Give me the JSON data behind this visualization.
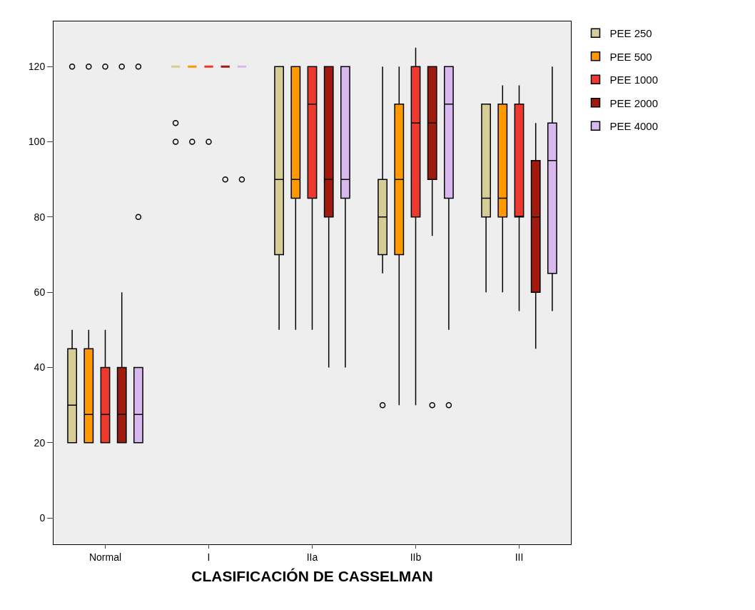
{
  "chart_data": {
    "type": "box",
    "xlabel": "CLASIFICACIÓN DE CASSELMAN",
    "categories": [
      "Normal",
      "I",
      "IIa",
      "IIb",
      "III"
    ],
    "ylim": [
      -7,
      132
    ],
    "yticks": [
      0,
      20,
      40,
      60,
      80,
      100,
      120
    ],
    "grid": false,
    "legend": "top right",
    "series": [
      {
        "name": "PEE 250",
        "color": "#d6cc96",
        "boxes": [
          {
            "low": 20,
            "q1": 20,
            "median": 30,
            "q3": 45,
            "high": 50,
            "outliers": [
              120
            ]
          },
          {
            "low": 120,
            "q1": 120,
            "median": 120,
            "q3": 120,
            "high": 120,
            "outliers": [
              105,
              100
            ]
          },
          {
            "low": 50,
            "q1": 70,
            "median": 90,
            "q3": 120,
            "high": 120
          },
          {
            "low": 65,
            "q1": 70,
            "median": 80,
            "q3": 90,
            "high": 120,
            "outliers": [
              30
            ]
          },
          {
            "low": 60,
            "q1": 80,
            "median": 85,
            "q3": 110,
            "high": 110
          }
        ]
      },
      {
        "name": "PEE 500",
        "color": "#ff9900",
        "boxes": [
          {
            "low": 20,
            "q1": 20,
            "median": 27.5,
            "q3": 45,
            "high": 50,
            "outliers": [
              120
            ]
          },
          {
            "low": 120,
            "q1": 120,
            "median": 120,
            "q3": 120,
            "high": 120,
            "outliers": [
              100
            ]
          },
          {
            "low": 50,
            "q1": 85,
            "median": 90,
            "q3": 120,
            "high": 120
          },
          {
            "low": 30,
            "q1": 70,
            "median": 90,
            "q3": 110,
            "high": 120
          },
          {
            "low": 60,
            "q1": 80,
            "median": 85,
            "q3": 110,
            "high": 115
          }
        ]
      },
      {
        "name": "PEE 1000",
        "color": "#ee3a2e",
        "boxes": [
          {
            "low": 20,
            "q1": 20,
            "median": 27.5,
            "q3": 40,
            "high": 50,
            "outliers": [
              120
            ]
          },
          {
            "low": 120,
            "q1": 120,
            "median": 120,
            "q3": 120,
            "high": 120,
            "outliers": [
              100
            ]
          },
          {
            "low": 50,
            "q1": 85,
            "median": 110,
            "q3": 120,
            "high": 120
          },
          {
            "low": 30,
            "q1": 80,
            "median": 105,
            "q3": 120,
            "high": 125
          },
          {
            "low": 55,
            "q1": 80,
            "median": 80,
            "q3": 110,
            "high": 115
          }
        ]
      },
      {
        "name": "PEE 2000",
        "color": "#a01b0d",
        "boxes": [
          {
            "low": 20,
            "q1": 20,
            "median": 27.5,
            "q3": 40,
            "high": 60,
            "outliers": [
              120
            ]
          },
          {
            "low": 120,
            "q1": 120,
            "median": 120,
            "q3": 120,
            "high": 120,
            "outliers": [
              90
            ]
          },
          {
            "low": 40,
            "q1": 80,
            "median": 90,
            "q3": 120,
            "high": 120
          },
          {
            "low": 75,
            "q1": 90,
            "median": 105,
            "q3": 120,
            "high": 120,
            "outliers": [
              30
            ]
          },
          {
            "low": 45,
            "q1": 60,
            "median": 80,
            "q3": 95,
            "high": 105
          }
        ]
      },
      {
        "name": "PEE 4000",
        "color": "#d9b8ef",
        "boxes": [
          {
            "low": 20,
            "q1": 20,
            "median": 27.5,
            "q3": 40,
            "high": 40,
            "outliers": [
              120,
              80
            ]
          },
          {
            "low": 120,
            "q1": 120,
            "median": 120,
            "q3": 120,
            "high": 120,
            "outliers": [
              90
            ]
          },
          {
            "low": 40,
            "q1": 85,
            "median": 90,
            "q3": 120,
            "high": 120
          },
          {
            "low": 50,
            "q1": 85,
            "median": 110,
            "q3": 120,
            "high": 120,
            "outliers": [
              30
            ]
          },
          {
            "low": 55,
            "q1": 65,
            "median": 95,
            "q3": 105,
            "high": 120
          }
        ]
      }
    ]
  }
}
